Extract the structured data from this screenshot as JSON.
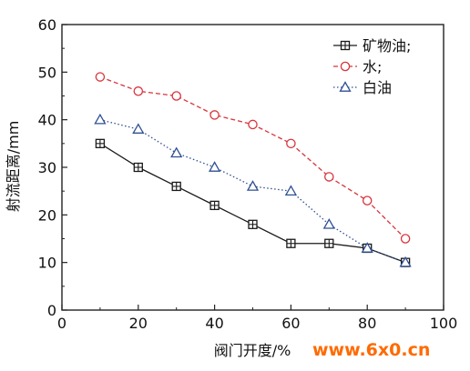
{
  "chart_data": {
    "type": "line",
    "title": "",
    "xlabel": "阀门开度/%",
    "ylabel": "射流距离/mm",
    "xlim": [
      0,
      100
    ],
    "ylim": [
      0,
      60
    ],
    "xticks": [
      0,
      20,
      40,
      60,
      80,
      100
    ],
    "yticks": [
      0,
      10,
      20,
      30,
      40,
      50,
      60
    ],
    "grid": false,
    "legend_position": "top-right",
    "x": [
      10,
      20,
      30,
      40,
      50,
      60,
      70,
      80,
      90
    ],
    "series": [
      {
        "name": "矿物油;",
        "values": [
          35,
          30,
          26,
          22,
          18,
          14,
          14,
          13,
          10
        ],
        "color": "#1a1a1a",
        "line_style": "solid",
        "marker": "square-plus"
      },
      {
        "name": "水;",
        "values": [
          49,
          46,
          45,
          41,
          39,
          35,
          28,
          23,
          15
        ],
        "color": "#d8343c",
        "line_style": "dashed",
        "marker": "circle"
      },
      {
        "name": "白油",
        "values": [
          40,
          38,
          33,
          30,
          26,
          25,
          18,
          13,
          10
        ],
        "color": "#2f4f93",
        "line_style": "dotted",
        "marker": "triangle"
      }
    ]
  },
  "watermark": {
    "text": "www.6x0.cn",
    "color": "#ff6a00"
  }
}
